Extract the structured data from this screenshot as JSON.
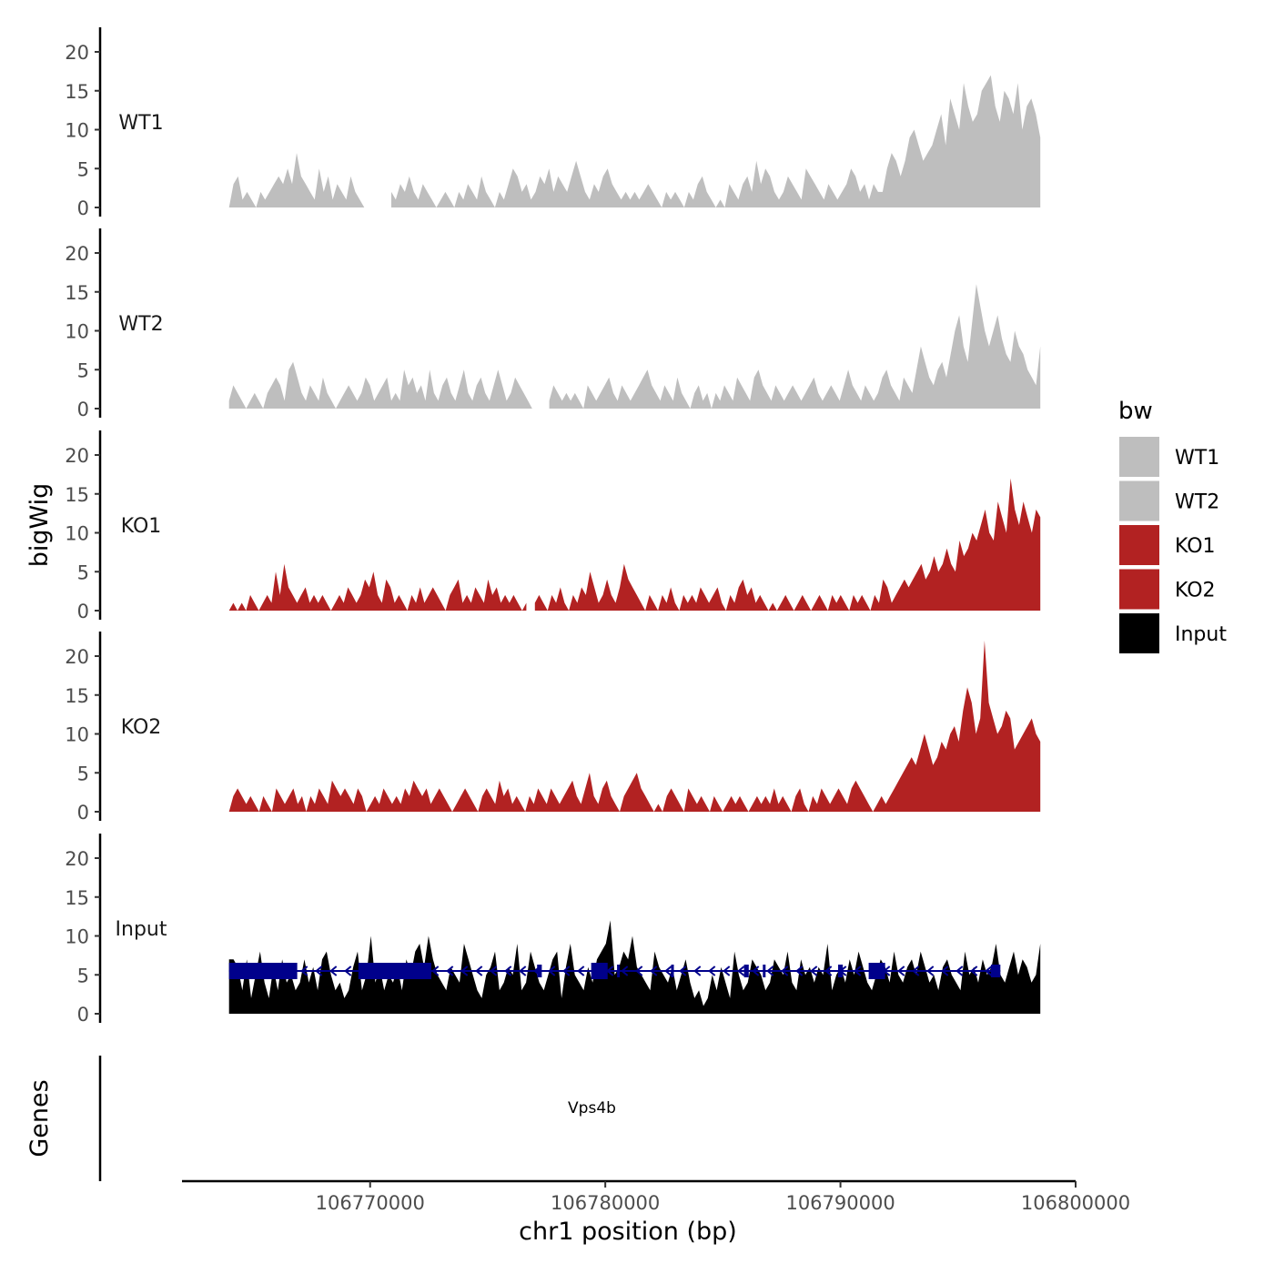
{
  "chart_data": {
    "type": "area",
    "chromosome": "chr1",
    "ylabel": "bigWig",
    "xlabel": "chr1 position (bp)",
    "genes_label": "Genes",
    "ylim": [
      0,
      22
    ],
    "y_ticks": [
      0,
      5,
      10,
      15,
      20
    ],
    "x_ticks": [
      106770000,
      106780000,
      106790000,
      106800000
    ],
    "x_tick_labels": [
      "106770000",
      "106780000",
      "106790000",
      "106800000"
    ],
    "xlim": [
      106762000,
      106800000
    ],
    "data_range": [
      106764000,
      106798500
    ],
    "legend": {
      "title": "bw",
      "entries": [
        {
          "label": "WT1",
          "color": "#bebebe"
        },
        {
          "label": "WT2",
          "color": "#bebebe"
        },
        {
          "label": "KO1",
          "color": "#b22222"
        },
        {
          "label": "KO2",
          "color": "#b22222"
        },
        {
          "label": "Input",
          "color": "#000000"
        }
      ]
    },
    "series": [
      {
        "name": "WT1",
        "color": "#bebebe",
        "values": [
          0,
          3,
          4,
          1,
          2,
          1,
          0,
          2,
          1,
          2,
          3,
          4,
          3,
          5,
          3,
          7,
          4,
          3,
          2,
          1,
          5,
          2,
          4,
          1,
          3,
          2,
          1,
          4,
          2,
          1,
          0,
          0,
          null,
          null,
          null,
          null,
          2,
          1,
          3,
          2,
          4,
          2,
          1,
          3,
          2,
          1,
          0,
          1,
          2,
          1,
          0,
          2,
          1,
          3,
          2,
          1,
          4,
          2,
          1,
          0,
          2,
          1,
          3,
          5,
          4,
          2,
          3,
          1,
          2,
          4,
          3,
          5,
          2,
          4,
          3,
          2,
          4,
          6,
          4,
          2,
          1,
          3,
          2,
          4,
          5,
          3,
          2,
          1,
          2,
          1,
          2,
          1,
          2,
          3,
          2,
          1,
          0,
          2,
          1,
          2,
          1,
          0,
          2,
          1,
          3,
          4,
          2,
          1,
          0,
          1,
          0,
          3,
          2,
          1,
          3,
          4,
          2,
          6,
          3,
          5,
          4,
          2,
          1,
          2,
          4,
          3,
          2,
          1,
          5,
          4,
          3,
          2,
          1,
          3,
          2,
          1,
          2,
          3,
          5,
          4,
          2,
          3,
          1,
          3,
          2,
          2,
          5,
          7,
          6,
          4,
          6,
          9,
          10,
          8,
          6,
          7,
          8,
          10,
          12,
          8,
          14,
          12,
          10,
          16,
          13,
          11,
          12,
          15,
          16,
          17,
          13,
          11,
          15,
          14,
          12,
          16,
          10,
          13,
          14,
          12,
          9
        ]
      },
      {
        "name": "WT2",
        "color": "#bebebe",
        "values": [
          1,
          3,
          2,
          1,
          0,
          1,
          2,
          1,
          0,
          2,
          3,
          4,
          3,
          1,
          5,
          6,
          4,
          2,
          1,
          3,
          2,
          1,
          4,
          2,
          1,
          0,
          1,
          2,
          3,
          2,
          1,
          2,
          4,
          3,
          1,
          2,
          3,
          4,
          1,
          2,
          1,
          5,
          3,
          4,
          2,
          3,
          1,
          5,
          2,
          1,
          3,
          4,
          2,
          1,
          3,
          5,
          2,
          1,
          3,
          4,
          2,
          1,
          3,
          5,
          3,
          1,
          2,
          4,
          3,
          2,
          1,
          0,
          null,
          null,
          null,
          1,
          3,
          2,
          1,
          2,
          1,
          2,
          1,
          0,
          3,
          2,
          1,
          2,
          3,
          4,
          2,
          1,
          3,
          2,
          1,
          2,
          3,
          4,
          5,
          3,
          2,
          1,
          3,
          2,
          1,
          4,
          2,
          1,
          0,
          2,
          3,
          1,
          2,
          0,
          2,
          1,
          3,
          2,
          1,
          4,
          3,
          2,
          1,
          4,
          5,
          3,
          2,
          1,
          3,
          2,
          1,
          2,
          3,
          2,
          1,
          2,
          3,
          4,
          2,
          1,
          2,
          3,
          2,
          1,
          3,
          5,
          3,
          2,
          1,
          3,
          2,
          1,
          2,
          4,
          5,
          3,
          2,
          1,
          4,
          3,
          2,
          5,
          8,
          6,
          4,
          3,
          5,
          6,
          4,
          7,
          10,
          12,
          8,
          6,
          11,
          16,
          13,
          10,
          8,
          10,
          12,
          9,
          7,
          6,
          10,
          8,
          7,
          5,
          4,
          3,
          8
        ]
      },
      {
        "name": "KO1",
        "color": "#b22222",
        "values": [
          0,
          1,
          0,
          1,
          0,
          2,
          1,
          0,
          1,
          2,
          1,
          5,
          2,
          6,
          3,
          2,
          1,
          2,
          3,
          1,
          2,
          1,
          2,
          1,
          0,
          1,
          2,
          1,
          3,
          2,
          1,
          2,
          4,
          3,
          5,
          2,
          1,
          4,
          3,
          1,
          2,
          1,
          0,
          2,
          1,
          3,
          1,
          2,
          3,
          2,
          1,
          0,
          2,
          3,
          4,
          1,
          2,
          1,
          3,
          2,
          1,
          4,
          2,
          3,
          1,
          2,
          1,
          2,
          1,
          0,
          1,
          null,
          1,
          2,
          1,
          0,
          2,
          1,
          3,
          1,
          0,
          2,
          1,
          3,
          2,
          5,
          3,
          1,
          2,
          4,
          2,
          1,
          3,
          6,
          4,
          3,
          2,
          1,
          0,
          2,
          1,
          0,
          2,
          1,
          3,
          1,
          0,
          2,
          1,
          2,
          1,
          3,
          2,
          1,
          2,
          3,
          1,
          0,
          2,
          1,
          3,
          4,
          2,
          3,
          1,
          2,
          1,
          0,
          1,
          0,
          1,
          2,
          1,
          0,
          1,
          2,
          1,
          0,
          1,
          2,
          1,
          0,
          2,
          1,
          2,
          1,
          0,
          2,
          1,
          2,
          1,
          0,
          2,
          1,
          4,
          3,
          1,
          2,
          3,
          4,
          3,
          4,
          5,
          6,
          4,
          5,
          7,
          5,
          6,
          8,
          6,
          5,
          9,
          7,
          8,
          10,
          9,
          11,
          13,
          10,
          9,
          14,
          12,
          10,
          17,
          13,
          11,
          14,
          12,
          10,
          13,
          12
        ]
      },
      {
        "name": "KO2",
        "color": "#b22222",
        "values": [
          0,
          2,
          3,
          2,
          1,
          2,
          1,
          0,
          2,
          1,
          0,
          3,
          2,
          1,
          2,
          3,
          1,
          2,
          0,
          2,
          1,
          3,
          2,
          1,
          4,
          3,
          2,
          3,
          2,
          1,
          3,
          2,
          0,
          1,
          2,
          1,
          3,
          2,
          1,
          2,
          1,
          3,
          2,
          4,
          3,
          2,
          3,
          1,
          2,
          3,
          2,
          1,
          0,
          1,
          2,
          3,
          2,
          1,
          0,
          2,
          3,
          2,
          1,
          4,
          2,
          3,
          1,
          2,
          1,
          0,
          2,
          1,
          3,
          2,
          1,
          3,
          2,
          1,
          2,
          3,
          4,
          2,
          1,
          3,
          5,
          2,
          1,
          3,
          4,
          2,
          1,
          0,
          2,
          3,
          4,
          5,
          3,
          2,
          1,
          0,
          1,
          0,
          2,
          3,
          2,
          1,
          0,
          3,
          2,
          1,
          2,
          1,
          0,
          2,
          1,
          0,
          1,
          2,
          1,
          2,
          1,
          0,
          1,
          2,
          1,
          2,
          1,
          3,
          1,
          2,
          1,
          0,
          2,
          3,
          1,
          0,
          2,
          1,
          3,
          2,
          1,
          2,
          3,
          2,
          1,
          3,
          4,
          3,
          2,
          1,
          0,
          1,
          2,
          1,
          2,
          3,
          4,
          5,
          6,
          7,
          6,
          8,
          10,
          8,
          6,
          7,
          9,
          8,
          10,
          11,
          9,
          13,
          16,
          14,
          10,
          12,
          22,
          14,
          12,
          10,
          11,
          13,
          12,
          8,
          9,
          10,
          11,
          12,
          10,
          9
        ]
      },
      {
        "name": "Input",
        "color": "#000000",
        "values": [
          7,
          7,
          6,
          3,
          7,
          2,
          5,
          8,
          4,
          2,
          6,
          3,
          7,
          4,
          5,
          3,
          4,
          7,
          4,
          6,
          3,
          7,
          8,
          5,
          3,
          4,
          2,
          3,
          6,
          8,
          3,
          5,
          10,
          4,
          6,
          3,
          5,
          4,
          6,
          3,
          7,
          5,
          8,
          9,
          6,
          10,
          7,
          5,
          4,
          3,
          6,
          5,
          4,
          9,
          7,
          5,
          3,
          2,
          5,
          6,
          8,
          3,
          4,
          6,
          5,
          9,
          3,
          4,
          8,
          6,
          4,
          3,
          5,
          7,
          8,
          2,
          6,
          9,
          5,
          4,
          3,
          6,
          4,
          7,
          8,
          9,
          12,
          5,
          6,
          8,
          7,
          10,
          6,
          5,
          4,
          3,
          8,
          6,
          5,
          4,
          6,
          3,
          5,
          7,
          4,
          2,
          3,
          1,
          2,
          5,
          3,
          6,
          4,
          2,
          8,
          5,
          3,
          4,
          7,
          6,
          5,
          3,
          4,
          7,
          6,
          5,
          8,
          4,
          3,
          7,
          5,
          6,
          4,
          6,
          5,
          9,
          3,
          5,
          6,
          4,
          7,
          5,
          8,
          6,
          4,
          3,
          5,
          7,
          6,
          4,
          8,
          5,
          4,
          6,
          7,
          5,
          8,
          6,
          4,
          5,
          3,
          6,
          7,
          5,
          4,
          3,
          8,
          5,
          6,
          4,
          7,
          5,
          6,
          9,
          5,
          4,
          6,
          8,
          5,
          7,
          6,
          4,
          5,
          9
        ]
      }
    ],
    "gene_track": {
      "gene_name": "Vps4b",
      "color": "#00008b",
      "strand": "-",
      "start": 106764000,
      "end": 106796800,
      "exons": [
        [
          106764000,
          106766900,
          "thick"
        ],
        [
          106769500,
          106772600,
          "thick"
        ],
        [
          106777100,
          106777300,
          "thin"
        ],
        [
          106779400,
          106780100,
          "thick"
        ],
        [
          106780500,
          106780600,
          "thin"
        ],
        [
          106782800,
          106782900,
          "thin"
        ],
        [
          106785900,
          106786100,
          "thin"
        ],
        [
          106786700,
          106786800,
          "thin"
        ],
        [
          106789900,
          106790100,
          "thin"
        ],
        [
          106791200,
          106791900,
          "thick"
        ],
        [
          106796400,
          106796800,
          "thin"
        ]
      ]
    }
  }
}
